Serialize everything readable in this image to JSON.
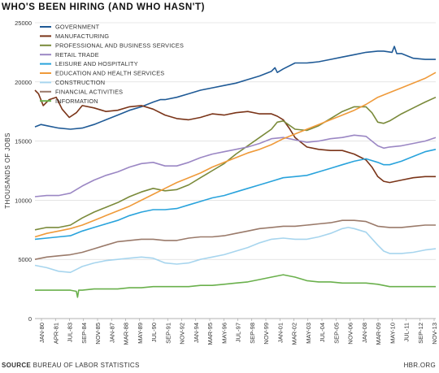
{
  "title": "WHO'S BEEN HIRING (AND WHO HASN'T)",
  "footer": {
    "source_label": "SOURCE",
    "source_text": "BUREAU OF LABOR STATISTICS",
    "credit": "HBR.ORG"
  },
  "chart_data": {
    "type": "line",
    "title": "WHO'S BEEN HIRING (AND WHO HASN'T)",
    "ylabel": "THOUSANDS OF JOBS",
    "xlabel": "",
    "ylim": [
      0,
      25000
    ],
    "yticks": [
      0,
      5000,
      10000,
      15000,
      20000,
      25000
    ],
    "ytick_labels": [
      "0",
      "5000",
      "10000",
      "15000",
      "20000",
      "25000"
    ],
    "xlim": [
      1980.0,
      2013.9
    ],
    "xticks": [
      "JAN-80",
      "APR-81",
      "JUL-83",
      "SEP-84",
      "NOV-85",
      "JAN-87",
      "MAR-88",
      "MAY-89",
      "JUL-90",
      "SEP-91",
      "NOV-92",
      "JAN-94",
      "MAR-95",
      "MAY-96",
      "JUL-97",
      "SEP-98",
      "NOV-99",
      "JAN-01",
      "MAR-02",
      "MAY-03",
      "JUL-04",
      "SEP-05",
      "NOV-06",
      "JAN-08",
      "MAR-09",
      "MAY-10",
      "JUL-11",
      "SEP-12",
      "NOV-13"
    ],
    "grid": "horizontal",
    "legend_position": "top-left",
    "series": [
      {
        "name": "GOVERNMENT",
        "color": "#1f5a96",
        "x": [
          1980.0,
          1980.5,
          1981.0,
          1982.0,
          1983.0,
          1984.0,
          1985.0,
          1986.0,
          1987.0,
          1988.0,
          1989.0,
          1990.0,
          1990.6,
          1991.0,
          1992.0,
          1993.0,
          1994.0,
          1995.0,
          1996.0,
          1997.0,
          1998.0,
          1999.0,
          2000.0,
          2000.3,
          2000.5,
          2001.0,
          2002.0,
          2003.0,
          2004.0,
          2005.0,
          2006.0,
          2007.0,
          2008.0,
          2009.0,
          2009.5,
          2010.2,
          2010.4,
          2010.6,
          2011.0,
          2012.0,
          2013.0,
          2013.9
        ],
        "y": [
          16200,
          16400,
          16300,
          16100,
          16000,
          16100,
          16400,
          16800,
          17200,
          17600,
          17900,
          18300,
          18500,
          18500,
          18700,
          19000,
          19300,
          19500,
          19700,
          19900,
          20200,
          20500,
          20900,
          21200,
          20800,
          21100,
          21600,
          21600,
          21700,
          21900,
          22100,
          22300,
          22500,
          22600,
          22600,
          22500,
          23000,
          22400,
          22400,
          22000,
          21900,
          21900
        ]
      },
      {
        "name": "MANUFACTURING",
        "color": "#7a3418",
        "x": [
          1980.0,
          1980.3,
          1980.7,
          1981.2,
          1981.8,
          1982.3,
          1982.9,
          1983.5,
          1984.0,
          1985.0,
          1986.0,
          1987.0,
          1988.0,
          1989.0,
          1990.0,
          1991.0,
          1992.0,
          1993.0,
          1994.0,
          1995.0,
          1996.0,
          1997.0,
          1998.0,
          1999.0,
          2000.0,
          2000.5,
          2001.0,
          2001.5,
          2002.0,
          2002.5,
          2003.0,
          2004.0,
          2005.0,
          2006.0,
          2007.0,
          2008.0,
          2008.5,
          2009.0,
          2009.5,
          2010.0,
          2011.0,
          2012.0,
          2013.0,
          2013.9
        ],
        "y": [
          19300,
          19000,
          18000,
          18500,
          18700,
          17700,
          17000,
          17400,
          18000,
          17800,
          17500,
          17600,
          17900,
          18000,
          17700,
          17200,
          16900,
          16800,
          17000,
          17300,
          17200,
          17400,
          17500,
          17300,
          17300,
          17100,
          16800,
          16100,
          15300,
          14900,
          14500,
          14300,
          14200,
          14200,
          13900,
          13400,
          12800,
          12000,
          11600,
          11500,
          11700,
          11900,
          12000,
          12000
        ]
      },
      {
        "name": "PROFESSIONAL AND BUSINESS SERVICES",
        "color": "#7a8a3a",
        "x": [
          1980.0,
          1981.0,
          1982.0,
          1983.0,
          1984.0,
          1985.0,
          1986.0,
          1987.0,
          1988.0,
          1989.0,
          1990.0,
          1991.0,
          1992.0,
          1993.0,
          1994.0,
          1995.0,
          1996.0,
          1997.0,
          1998.0,
          1999.0,
          2000.0,
          2000.5,
          2001.0,
          2002.0,
          2003.0,
          2004.0,
          2005.0,
          2006.0,
          2007.0,
          2008.0,
          2008.5,
          2009.0,
          2009.5,
          2010.0,
          2011.0,
          2012.0,
          2013.0,
          2013.9
        ],
        "y": [
          7500,
          7700,
          7700,
          7900,
          8500,
          9000,
          9400,
          9800,
          10300,
          10700,
          11000,
          10800,
          10900,
          11300,
          11900,
          12500,
          13100,
          13900,
          14600,
          15300,
          16000,
          16600,
          16700,
          16000,
          15900,
          16300,
          16900,
          17500,
          17900,
          17900,
          17400,
          16600,
          16500,
          16700,
          17300,
          17800,
          18300,
          18700
        ]
      },
      {
        "name": "RETAIL TRADE",
        "color": "#9b87c4",
        "x": [
          1980.0,
          1981.0,
          1982.0,
          1983.0,
          1984.0,
          1985.0,
          1986.0,
          1987.0,
          1988.0,
          1989.0,
          1990.0,
          1991.0,
          1992.0,
          1993.0,
          1994.0,
          1995.0,
          1996.0,
          1997.0,
          1998.0,
          1999.0,
          2000.0,
          2001.0,
          2002.0,
          2003.0,
          2004.0,
          2005.0,
          2006.0,
          2007.0,
          2008.0,
          2008.5,
          2009.0,
          2009.5,
          2010.0,
          2011.0,
          2012.0,
          2013.0,
          2013.9
        ],
        "y": [
          10300,
          10400,
          10400,
          10600,
          11200,
          11700,
          12100,
          12400,
          12800,
          13100,
          13200,
          12900,
          12900,
          13200,
          13600,
          13900,
          14100,
          14300,
          14500,
          14800,
          15200,
          15300,
          15100,
          14900,
          15000,
          15200,
          15300,
          15500,
          15400,
          15000,
          14600,
          14400,
          14500,
          14600,
          14800,
          15000,
          15300
        ]
      },
      {
        "name": "LEISURE AND HOSPITALITY",
        "color": "#29a3dc",
        "x": [
          1980.0,
          1981.0,
          1982.0,
          1983.0,
          1984.0,
          1985.0,
          1986.0,
          1987.0,
          1988.0,
          1989.0,
          1990.0,
          1991.0,
          1992.0,
          1993.0,
          1994.0,
          1995.0,
          1996.0,
          1997.0,
          1998.0,
          1999.0,
          2000.0,
          2001.0,
          2002.0,
          2003.0,
          2004.0,
          2005.0,
          2006.0,
          2007.0,
          2008.0,
          2009.0,
          2009.5,
          2010.0,
          2011.0,
          2012.0,
          2013.0,
          2013.9
        ],
        "y": [
          6700,
          6800,
          6900,
          7000,
          7400,
          7700,
          8000,
          8300,
          8700,
          9000,
          9200,
          9200,
          9300,
          9600,
          9900,
          10200,
          10400,
          10700,
          11000,
          11300,
          11600,
          11900,
          12000,
          12100,
          12400,
          12700,
          13000,
          13300,
          13500,
          13200,
          13000,
          13000,
          13300,
          13700,
          14100,
          14300
        ]
      },
      {
        "name": "EDUCATION AND HEALTH SERVICES",
        "color": "#ef9a3a",
        "x": [
          1980.0,
          1981.0,
          1982.0,
          1983.0,
          1984.0,
          1985.0,
          1986.0,
          1987.0,
          1988.0,
          1989.0,
          1990.0,
          1991.0,
          1992.0,
          1993.0,
          1994.0,
          1995.0,
          1996.0,
          1997.0,
          1998.0,
          1999.0,
          2000.0,
          2001.0,
          2002.0,
          2003.0,
          2004.0,
          2005.0,
          2006.0,
          2007.0,
          2008.0,
          2009.0,
          2010.0,
          2011.0,
          2012.0,
          2013.0,
          2013.9
        ],
        "y": [
          6900,
          7200,
          7400,
          7600,
          7900,
          8300,
          8700,
          9100,
          9500,
          10000,
          10500,
          11000,
          11500,
          11900,
          12300,
          12800,
          13200,
          13600,
          14000,
          14300,
          14700,
          15200,
          15600,
          16000,
          16400,
          16800,
          17200,
          17600,
          18100,
          18700,
          19100,
          19500,
          19900,
          20300,
          20800
        ]
      },
      {
        "name": "CONSTRUCTION",
        "color": "#a7d5ee",
        "x": [
          1980.0,
          1981.0,
          1982.0,
          1983.0,
          1983.6,
          1984.0,
          1985.0,
          1986.0,
          1987.0,
          1988.0,
          1989.0,
          1990.0,
          1991.0,
          1992.0,
          1993.0,
          1994.0,
          1995.0,
          1996.0,
          1997.0,
          1998.0,
          1999.0,
          2000.0,
          2001.0,
          2002.0,
          2003.0,
          2004.0,
          2005.0,
          2006.0,
          2006.5,
          2007.0,
          2008.0,
          2009.0,
          2009.5,
          2010.0,
          2011.0,
          2012.0,
          2013.0,
          2013.9
        ],
        "y": [
          4500,
          4300,
          4000,
          3900,
          4200,
          4400,
          4700,
          4900,
          5000,
          5100,
          5200,
          5100,
          4700,
          4600,
          4700,
          5000,
          5200,
          5400,
          5700,
          6000,
          6400,
          6700,
          6800,
          6700,
          6700,
          6900,
          7200,
          7600,
          7700,
          7600,
          7300,
          6200,
          5700,
          5500,
          5500,
          5600,
          5800,
          5900
        ]
      },
      {
        "name": "FINANCIAL ACTIVITIES",
        "color": "#9a7a6a",
        "x": [
          1980.0,
          1981.0,
          1982.0,
          1983.0,
          1984.0,
          1985.0,
          1986.0,
          1987.0,
          1988.0,
          1989.0,
          1990.0,
          1991.0,
          1992.0,
          1993.0,
          1994.0,
          1995.0,
          1996.0,
          1997.0,
          1998.0,
          1999.0,
          2000.0,
          2001.0,
          2002.0,
          2003.0,
          2004.0,
          2005.0,
          2006.0,
          2007.0,
          2008.0,
          2009.0,
          2010.0,
          2011.0,
          2012.0,
          2013.0,
          2013.9
        ],
        "y": [
          5000,
          5200,
          5300,
          5400,
          5600,
          5900,
          6200,
          6500,
          6600,
          6700,
          6700,
          6600,
          6600,
          6800,
          6900,
          6900,
          7000,
          7200,
          7400,
          7600,
          7700,
          7800,
          7800,
          7900,
          8000,
          8100,
          8300,
          8300,
          8200,
          7800,
          7700,
          7700,
          7800,
          7900,
          7900
        ]
      },
      {
        "name": "INFORMATION",
        "color": "#6ab04c",
        "x": [
          1980.0,
          1981.0,
          1982.0,
          1983.0,
          1983.5,
          1983.6,
          1983.7,
          1984.0,
          1985.0,
          1986.0,
          1987.0,
          1988.0,
          1989.0,
          1990.0,
          1991.0,
          1992.0,
          1993.0,
          1994.0,
          1995.0,
          1996.0,
          1997.0,
          1998.0,
          1999.0,
          2000.0,
          2001.0,
          2002.0,
          2003.0,
          2004.0,
          2005.0,
          2006.0,
          2007.0,
          2008.0,
          2009.0,
          2010.0,
          2011.0,
          2012.0,
          2013.0,
          2013.9
        ],
        "y": [
          2400,
          2400,
          2400,
          2400,
          2300,
          1800,
          2400,
          2400,
          2500,
          2500,
          2500,
          2600,
          2600,
          2700,
          2700,
          2700,
          2700,
          2800,
          2800,
          2900,
          3000,
          3100,
          3300,
          3500,
          3700,
          3500,
          3200,
          3100,
          3100,
          3000,
          3000,
          3000,
          2900,
          2700,
          2700,
          2700,
          2700,
          2700
        ]
      }
    ]
  }
}
